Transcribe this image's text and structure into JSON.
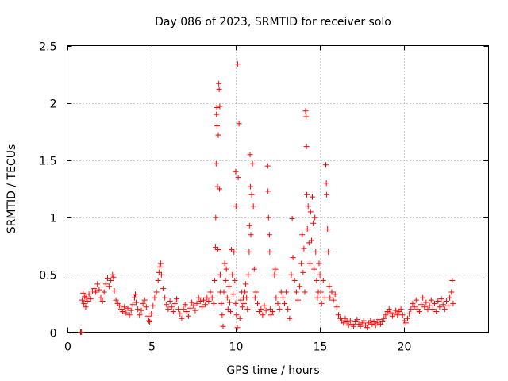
{
  "chart_data": {
    "type": "scatter",
    "title": "Day 086 of 2023, SRMTID for receiver solo",
    "xlabel": "GPS time / hours",
    "ylabel": "SRMTID / TECUs",
    "xlim": [
      0,
      25
    ],
    "ylim": [
      0,
      2.5
    ],
    "xticks": [
      0,
      5,
      10,
      15,
      20
    ],
    "yticks": [
      0,
      0.5,
      1,
      1.5,
      2,
      2.5
    ],
    "xtick_labels": [
      "0",
      "5",
      "10",
      "15",
      "20"
    ],
    "ytick_labels": [
      "0",
      "0.5",
      "1",
      "1.5",
      "2",
      "2.5"
    ],
    "grid": true,
    "legend": "none",
    "marker": "+",
    "marker_color": "#ff0000",
    "series": [
      {
        "name": "SRMTID",
        "points": [
          [
            0.8,
            0.0
          ],
          [
            0.85,
            0.0
          ],
          [
            0.9,
            0.28
          ],
          [
            0.95,
            0.34
          ],
          [
            1.0,
            0.25
          ],
          [
            1.05,
            0.31
          ],
          [
            1.1,
            0.22
          ],
          [
            1.15,
            0.3
          ],
          [
            1.2,
            0.27
          ],
          [
            1.3,
            0.33
          ],
          [
            1.4,
            0.29
          ],
          [
            1.5,
            0.36
          ],
          [
            1.6,
            0.38
          ],
          [
            1.7,
            0.35
          ],
          [
            1.8,
            0.42
          ],
          [
            1.9,
            0.37
          ],
          [
            2.0,
            0.3
          ],
          [
            2.1,
            0.27
          ],
          [
            2.2,
            0.35
          ],
          [
            2.3,
            0.42
          ],
          [
            2.4,
            0.47
          ],
          [
            2.5,
            0.4
          ],
          [
            2.6,
            0.45
          ],
          [
            2.7,
            0.5
          ],
          [
            2.75,
            0.48
          ],
          [
            2.8,
            0.36
          ],
          [
            2.9,
            0.28
          ],
          [
            3.0,
            0.25
          ],
          [
            3.1,
            0.23
          ],
          [
            3.2,
            0.2
          ],
          [
            3.3,
            0.18
          ],
          [
            3.4,
            0.22
          ],
          [
            3.5,
            0.17
          ],
          [
            3.6,
            0.21
          ],
          [
            3.7,
            0.15
          ],
          [
            3.8,
            0.19
          ],
          [
            3.9,
            0.24
          ],
          [
            4.0,
            0.3
          ],
          [
            4.05,
            0.33
          ],
          [
            4.1,
            0.26
          ],
          [
            4.2,
            0.2
          ],
          [
            4.3,
            0.15
          ],
          [
            4.4,
            0.19
          ],
          [
            4.5,
            0.25
          ],
          [
            4.6,
            0.28
          ],
          [
            4.7,
            0.22
          ],
          [
            4.8,
            0.14
          ],
          [
            4.85,
            0.1
          ],
          [
            4.9,
            0.09
          ],
          [
            5.0,
            0.16
          ],
          [
            5.1,
            0.23
          ],
          [
            5.2,
            0.3
          ],
          [
            5.3,
            0.35
          ],
          [
            5.4,
            0.45
          ],
          [
            5.45,
            0.52
          ],
          [
            5.5,
            0.57
          ],
          [
            5.55,
            0.6
          ],
          [
            5.6,
            0.5
          ],
          [
            5.7,
            0.38
          ],
          [
            5.8,
            0.3
          ],
          [
            5.9,
            0.24
          ],
          [
            6.0,
            0.2
          ],
          [
            6.1,
            0.27
          ],
          [
            6.2,
            0.22
          ],
          [
            6.3,
            0.18
          ],
          [
            6.4,
            0.25
          ],
          [
            6.5,
            0.29
          ],
          [
            6.6,
            0.2
          ],
          [
            6.7,
            0.16
          ],
          [
            6.8,
            0.12
          ],
          [
            6.9,
            0.2
          ],
          [
            7.0,
            0.24
          ],
          [
            7.1,
            0.18
          ],
          [
            7.2,
            0.14
          ],
          [
            7.3,
            0.21
          ],
          [
            7.4,
            0.26
          ],
          [
            7.5,
            0.23
          ],
          [
            7.6,
            0.19
          ],
          [
            7.7,
            0.25
          ],
          [
            7.8,
            0.3
          ],
          [
            7.9,
            0.27
          ],
          [
            8.0,
            0.22
          ],
          [
            8.1,
            0.28
          ],
          [
            8.2,
            0.24
          ],
          [
            8.3,
            0.3
          ],
          [
            8.4,
            0.27
          ],
          [
            8.5,
            0.35
          ],
          [
            8.6,
            0.3
          ],
          [
            8.7,
            0.25
          ],
          [
            8.75,
            0.45
          ],
          [
            8.8,
            0.74
          ],
          [
            8.82,
            1.0
          ],
          [
            8.84,
            1.47
          ],
          [
            8.86,
            1.9
          ],
          [
            8.88,
            1.96
          ],
          [
            8.9,
            1.8
          ],
          [
            8.92,
            1.27
          ],
          [
            8.95,
            0.72
          ],
          [
            8.97,
            1.72
          ],
          [
            9.0,
            2.17
          ],
          [
            9.02,
            2.12
          ],
          [
            9.04,
            1.25
          ],
          [
            9.06,
            1.97
          ],
          [
            9.08,
            0.5
          ],
          [
            9.1,
            0.35
          ],
          [
            9.15,
            0.25
          ],
          [
            9.2,
            0.15
          ],
          [
            9.25,
            0.05
          ],
          [
            9.3,
            0.35
          ],
          [
            9.35,
            0.6
          ],
          [
            9.4,
            0.45
          ],
          [
            9.45,
            0.55
          ],
          [
            9.5,
            0.3
          ],
          [
            9.55,
            0.2
          ],
          [
            9.6,
            0.4
          ],
          [
            9.65,
            0.26
          ],
          [
            9.7,
            0.18
          ],
          [
            9.75,
            0.72
          ],
          [
            9.8,
            0.5
          ],
          [
            9.85,
            0.33
          ],
          [
            9.9,
            0.7
          ],
          [
            9.95,
            0.45
          ],
          [
            10.0,
            0.25
          ],
          [
            10.0,
            1.4
          ],
          [
            10.02,
            1.1
          ],
          [
            10.05,
            0.15
          ],
          [
            10.1,
            0.04
          ],
          [
            10.12,
            2.34
          ],
          [
            10.15,
            1.35
          ],
          [
            10.2,
            1.82
          ],
          [
            10.25,
            0.12
          ],
          [
            10.3,
            0.28
          ],
          [
            10.35,
            0.35
          ],
          [
            10.4,
            0.22
          ],
          [
            10.45,
            0.3
          ],
          [
            10.5,
            0.25
          ],
          [
            10.55,
            0.35
          ],
          [
            10.6,
            0.42
          ],
          [
            10.65,
            0.3
          ],
          [
            10.7,
            0.2
          ],
          [
            10.75,
            0.5
          ],
          [
            10.8,
            0.7
          ],
          [
            10.82,
            0.93
          ],
          [
            10.85,
            1.55
          ],
          [
            10.88,
            1.27
          ],
          [
            10.9,
            0.85
          ],
          [
            10.95,
            1.2
          ],
          [
            11.0,
            1.47
          ],
          [
            11.05,
            1.1
          ],
          [
            11.1,
            0.55
          ],
          [
            11.15,
            0.3
          ],
          [
            11.2,
            0.35
          ],
          [
            11.3,
            0.25
          ],
          [
            11.4,
            0.18
          ],
          [
            11.5,
            0.2
          ],
          [
            11.6,
            0.15
          ],
          [
            11.7,
            0.23
          ],
          [
            11.8,
            0.19
          ],
          [
            11.9,
            1.45
          ],
          [
            11.92,
            1.23
          ],
          [
            11.95,
            1.0
          ],
          [
            12.0,
            0.85
          ],
          [
            12.02,
            0.7
          ],
          [
            12.05,
            0.2
          ],
          [
            12.1,
            0.15
          ],
          [
            12.2,
            0.18
          ],
          [
            12.3,
            0.5
          ],
          [
            12.35,
            0.55
          ],
          [
            12.4,
            0.3
          ],
          [
            12.5,
            0.25
          ],
          [
            12.6,
            0.2
          ],
          [
            12.7,
            0.35
          ],
          [
            12.8,
            0.3
          ],
          [
            12.9,
            0.25
          ],
          [
            13.0,
            0.35
          ],
          [
            13.1,
            0.2
          ],
          [
            13.2,
            0.12
          ],
          [
            13.3,
            0.5
          ],
          [
            13.35,
            0.99
          ],
          [
            13.4,
            0.65
          ],
          [
            13.5,
            0.45
          ],
          [
            13.6,
            0.35
          ],
          [
            13.7,
            0.28
          ],
          [
            13.8,
            0.4
          ],
          [
            13.9,
            0.6
          ],
          [
            13.95,
            0.85
          ],
          [
            14.0,
            0.52
          ],
          [
            14.05,
            0.73
          ],
          [
            14.1,
            0.35
          ],
          [
            14.15,
            1.93
          ],
          [
            14.18,
            1.88
          ],
          [
            14.2,
            1.62
          ],
          [
            14.22,
            1.2
          ],
          [
            14.25,
            0.9
          ],
          [
            14.3,
            1.1
          ],
          [
            14.35,
            0.78
          ],
          [
            14.4,
            0.6
          ],
          [
            14.45,
            1.05
          ],
          [
            14.5,
            0.8
          ],
          [
            14.55,
            1.18
          ],
          [
            14.6,
            0.95
          ],
          [
            14.65,
            0.55
          ],
          [
            14.7,
            1.0
          ],
          [
            14.75,
            0.7
          ],
          [
            14.8,
            0.45
          ],
          [
            14.85,
            0.3
          ],
          [
            14.9,
            0.35
          ],
          [
            14.95,
            0.6
          ],
          [
            15.0,
            0.5
          ],
          [
            15.05,
            0.35
          ],
          [
            15.1,
            0.25
          ],
          [
            15.2,
            0.45
          ],
          [
            15.3,
            0.3
          ],
          [
            15.35,
            1.46
          ],
          [
            15.38,
            1.3
          ],
          [
            15.4,
            1.2
          ],
          [
            15.45,
            0.9
          ],
          [
            15.5,
            0.7
          ],
          [
            15.55,
            0.4
          ],
          [
            15.6,
            0.3
          ],
          [
            15.7,
            0.35
          ],
          [
            15.8,
            0.28
          ],
          [
            15.9,
            0.33
          ],
          [
            16.0,
            0.22
          ],
          [
            16.1,
            0.15
          ],
          [
            16.2,
            0.12
          ],
          [
            16.3,
            0.1
          ],
          [
            16.4,
            0.08
          ],
          [
            16.5,
            0.12
          ],
          [
            16.6,
            0.09
          ],
          [
            16.7,
            0.06
          ],
          [
            16.8,
            0.1
          ],
          [
            16.9,
            0.07
          ],
          [
            17.0,
            0.05
          ],
          [
            17.1,
            0.09
          ],
          [
            17.2,
            0.11
          ],
          [
            17.3,
            0.07
          ],
          [
            17.4,
            0.05
          ],
          [
            17.5,
            0.08
          ],
          [
            17.6,
            0.1
          ],
          [
            17.7,
            0.06
          ],
          [
            17.8,
            0.04
          ],
          [
            17.9,
            0.08
          ],
          [
            18.0,
            0.1
          ],
          [
            18.1,
            0.07
          ],
          [
            18.2,
            0.09
          ],
          [
            18.3,
            0.06
          ],
          [
            18.4,
            0.08
          ],
          [
            18.5,
            0.11
          ],
          [
            18.6,
            0.07
          ],
          [
            18.7,
            0.09
          ],
          [
            18.8,
            0.12
          ],
          [
            18.9,
            0.15
          ],
          [
            19.0,
            0.18
          ],
          [
            19.1,
            0.2
          ],
          [
            19.2,
            0.17
          ],
          [
            19.3,
            0.14
          ],
          [
            19.4,
            0.16
          ],
          [
            19.5,
            0.19
          ],
          [
            19.6,
            0.15
          ],
          [
            19.7,
            0.18
          ],
          [
            19.8,
            0.2
          ],
          [
            19.9,
            0.15
          ],
          [
            20.0,
            0.1
          ],
          [
            20.1,
            0.08
          ],
          [
            20.2,
            0.12
          ],
          [
            20.3,
            0.16
          ],
          [
            20.4,
            0.2
          ],
          [
            20.5,
            0.25
          ],
          [
            20.6,
            0.22
          ],
          [
            20.7,
            0.28
          ],
          [
            20.8,
            0.2
          ],
          [
            20.9,
            0.18
          ],
          [
            21.0,
            0.24
          ],
          [
            21.1,
            0.3
          ],
          [
            21.2,
            0.22
          ],
          [
            21.3,
            0.26
          ],
          [
            21.4,
            0.2
          ],
          [
            21.5,
            0.23
          ],
          [
            21.6,
            0.28
          ],
          [
            21.7,
            0.2
          ],
          [
            21.8,
            0.25
          ],
          [
            21.9,
            0.18
          ],
          [
            22.0,
            0.27
          ],
          [
            22.1,
            0.22
          ],
          [
            22.2,
            0.29
          ],
          [
            22.3,
            0.24
          ],
          [
            22.4,
            0.2
          ],
          [
            22.5,
            0.27
          ],
          [
            22.6,
            0.23
          ],
          [
            22.7,
            0.3
          ],
          [
            22.8,
            0.35
          ],
          [
            22.85,
            0.45
          ],
          [
            22.9,
            0.25
          ]
        ]
      }
    ]
  }
}
